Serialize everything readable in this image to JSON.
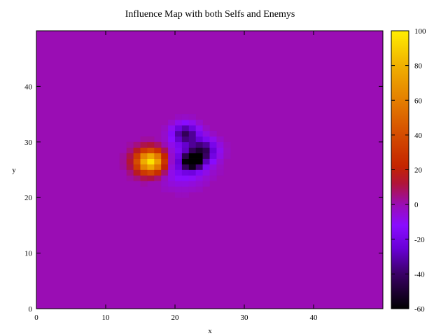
{
  "chart_data": {
    "type": "heatmap",
    "title": "Influence Map with both Selfs and Enemys",
    "xlabel": "x",
    "ylabel": "y",
    "xlim": [
      0,
      50
    ],
    "ylim": [
      0,
      50
    ],
    "xticks": [
      0,
      10,
      20,
      30,
      40
    ],
    "yticks": [
      0,
      10,
      20,
      30,
      40
    ],
    "background_value": 0,
    "colorbar": {
      "range": [
        -60,
        100
      ],
      "ticks": [
        100,
        80,
        60,
        40,
        20,
        0,
        -20,
        -40,
        -60
      ],
      "palette": [
        {
          "v": -60,
          "color": "#000000"
        },
        {
          "v": -40,
          "color": "#3a0066"
        },
        {
          "v": -25,
          "color": "#6a00d8"
        },
        {
          "v": -12,
          "color": "#8a0cff"
        },
        {
          "v": 0,
          "color": "#9a0db4"
        },
        {
          "v": 12,
          "color": "#b0143a"
        },
        {
          "v": 22,
          "color": "#c42400"
        },
        {
          "v": 40,
          "color": "#d44c00"
        },
        {
          "v": 60,
          "color": "#e47e00"
        },
        {
          "v": 80,
          "color": "#f0b000"
        },
        {
          "v": 100,
          "color": "#ffee00"
        }
      ]
    },
    "sources": [
      {
        "x": 16.5,
        "y": 26.5,
        "amplitude": 100,
        "sigma": 1.5
      },
      {
        "x": 22.5,
        "y": 26.5,
        "amplitude": -60,
        "sigma": 1.0
      },
      {
        "x": 21.5,
        "y": 31.5,
        "amplitude": -40,
        "sigma": 1.3
      },
      {
        "x": 24.0,
        "y": 28.5,
        "amplitude": -40,
        "sigma": 1.4
      },
      {
        "x": 21.0,
        "y": 26.0,
        "amplitude": -20,
        "sigma": 2.5
      }
    ]
  }
}
